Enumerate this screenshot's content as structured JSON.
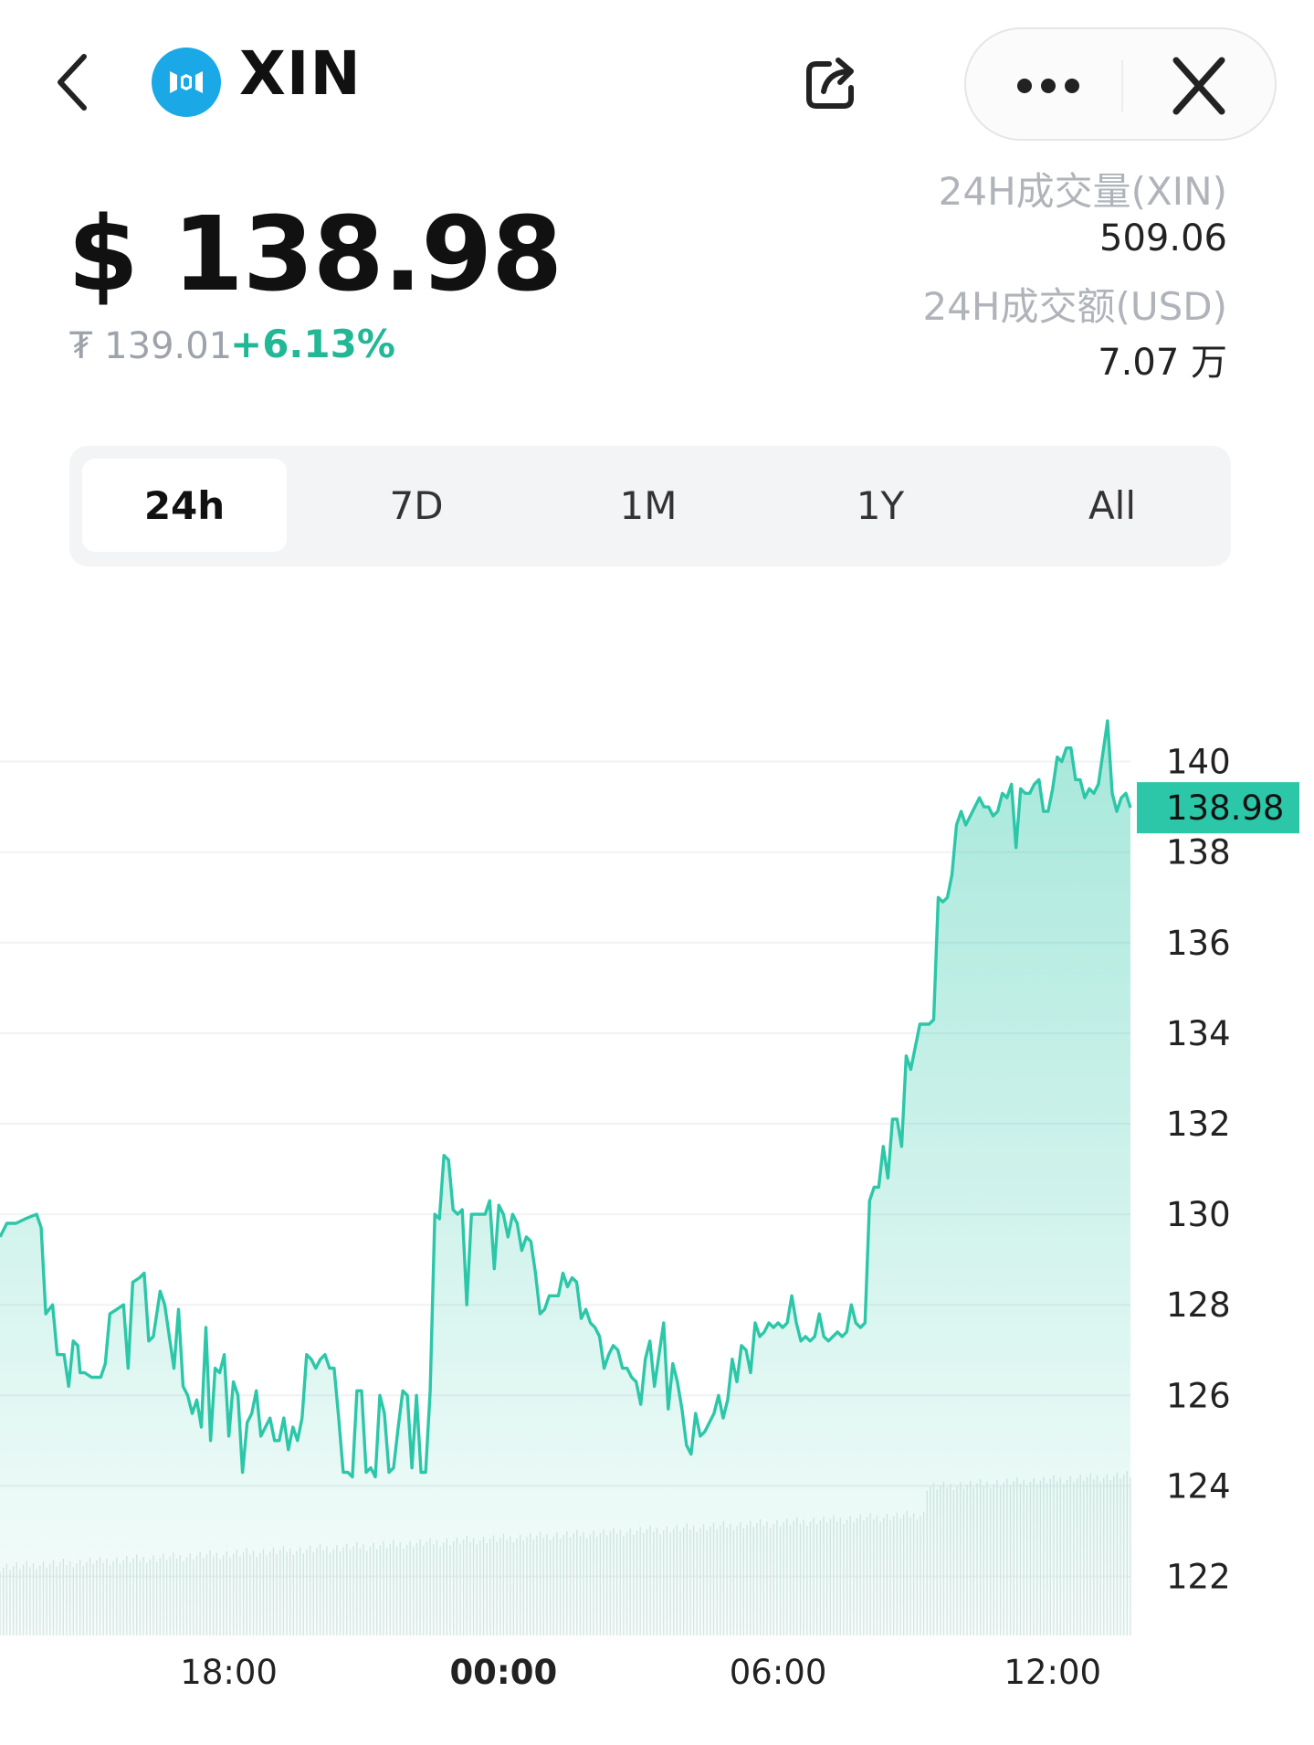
{
  "header": {
    "coin_symbol": "XIN",
    "logo_color": "#1aa9e6",
    "icons": [
      "back-arrow-icon",
      "mixin-logo-icon",
      "share-icon",
      "more-dots-icon",
      "close-icon"
    ]
  },
  "price": {
    "main": "$ 138.98",
    "alt_price": "₮ 139.01",
    "change": "+6.13%",
    "change_color": "#22b896"
  },
  "stats": {
    "volume_label": "24H成交量(XIN)",
    "volume_value": "509.06",
    "amount_label": "24H成交额(USD)",
    "amount_value": "7.07 万"
  },
  "range_tabs": [
    {
      "label": "24h",
      "active": true
    },
    {
      "label": "7D",
      "active": false
    },
    {
      "label": "1M",
      "active": false
    },
    {
      "label": "1Y",
      "active": false
    },
    {
      "label": "All",
      "active": false
    }
  ],
  "chart_data": {
    "type": "area",
    "title": "",
    "xlabel": "",
    "ylabel": "",
    "ylim": [
      120.9,
      143.1
    ],
    "y_ticks": [
      140,
      138,
      136,
      134,
      132,
      130,
      128,
      126,
      124,
      122
    ],
    "x_ticks": [
      {
        "label": "18:00",
        "t": 5.0,
        "bold": false
      },
      {
        "label": "00:00",
        "t": 11.0,
        "bold": true
      },
      {
        "label": "06:00",
        "t": 17.0,
        "bold": false
      },
      {
        "label": "12:00",
        "t": 23.0,
        "bold": false
      }
    ],
    "x_range_hours": [
      0,
      23.8
    ],
    "current_price": "138.98",
    "current_value": 138.98,
    "line_color": "#2cc7a8",
    "series": [
      {
        "points": [
          [
            0.0,
            129.5
          ],
          [
            0.15,
            129.8
          ],
          [
            0.35,
            129.8
          ],
          [
            0.55,
            129.9
          ],
          [
            0.8,
            130.0
          ],
          [
            0.9,
            129.7
          ],
          [
            1.0,
            127.8
          ],
          [
            1.15,
            128.0
          ],
          [
            1.25,
            126.9
          ],
          [
            1.4,
            126.9
          ],
          [
            1.5,
            126.2
          ],
          [
            1.6,
            127.2
          ],
          [
            1.7,
            127.1
          ],
          [
            1.75,
            126.5
          ],
          [
            1.85,
            126.5
          ],
          [
            2.0,
            126.4
          ],
          [
            2.2,
            126.4
          ],
          [
            2.3,
            126.7
          ],
          [
            2.4,
            127.8
          ],
          [
            2.55,
            127.9
          ],
          [
            2.7,
            128.0
          ],
          [
            2.8,
            126.6
          ],
          [
            2.9,
            128.5
          ],
          [
            3.05,
            128.6
          ],
          [
            3.15,
            128.7
          ],
          [
            3.25,
            127.2
          ],
          [
            3.35,
            127.3
          ],
          [
            3.5,
            128.3
          ],
          [
            3.6,
            128.0
          ],
          [
            3.7,
            127.3
          ],
          [
            3.8,
            126.6
          ],
          [
            3.9,
            127.9
          ],
          [
            4.0,
            126.2
          ],
          [
            4.1,
            126.0
          ],
          [
            4.2,
            125.6
          ],
          [
            4.3,
            125.9
          ],
          [
            4.4,
            125.3
          ],
          [
            4.5,
            127.5
          ],
          [
            4.6,
            125.0
          ],
          [
            4.7,
            126.6
          ],
          [
            4.8,
            126.5
          ],
          [
            4.9,
            126.9
          ],
          [
            5.0,
            125.1
          ],
          [
            5.1,
            126.3
          ],
          [
            5.2,
            126.0
          ],
          [
            5.3,
            124.3
          ],
          [
            5.4,
            125.4
          ],
          [
            5.5,
            125.6
          ],
          [
            5.6,
            126.1
          ],
          [
            5.7,
            125.1
          ],
          [
            5.8,
            125.3
          ],
          [
            5.9,
            125.5
          ],
          [
            6.0,
            125.0
          ],
          [
            6.1,
            125.0
          ],
          [
            6.2,
            125.5
          ],
          [
            6.3,
            124.8
          ],
          [
            6.4,
            125.3
          ],
          [
            6.5,
            125.0
          ],
          [
            6.6,
            125.5
          ],
          [
            6.7,
            126.9
          ],
          [
            6.8,
            126.8
          ],
          [
            6.9,
            126.6
          ],
          [
            7.0,
            126.8
          ],
          [
            7.1,
            126.9
          ],
          [
            7.2,
            126.6
          ],
          [
            7.3,
            126.6
          ],
          [
            7.4,
            125.5
          ],
          [
            7.5,
            124.3
          ],
          [
            7.6,
            124.3
          ],
          [
            7.7,
            124.2
          ],
          [
            7.8,
            126.1
          ],
          [
            7.9,
            126.1
          ],
          [
            8.0,
            124.3
          ],
          [
            8.1,
            124.4
          ],
          [
            8.2,
            124.2
          ],
          [
            8.3,
            126.0
          ],
          [
            8.4,
            125.6
          ],
          [
            8.5,
            124.3
          ],
          [
            8.6,
            124.4
          ],
          [
            8.7,
            125.3
          ],
          [
            8.8,
            126.1
          ],
          [
            8.9,
            126.0
          ],
          [
            9.0,
            124.4
          ],
          [
            9.1,
            126.0
          ],
          [
            9.2,
            124.3
          ],
          [
            9.3,
            124.3
          ],
          [
            9.4,
            126.1
          ],
          [
            9.5,
            130.0
          ],
          [
            9.6,
            129.9
          ],
          [
            9.7,
            131.3
          ],
          [
            9.8,
            131.2
          ],
          [
            9.9,
            130.1
          ],
          [
            10.0,
            130.0
          ],
          [
            10.1,
            130.1
          ],
          [
            10.2,
            128.0
          ],
          [
            10.3,
            130.0
          ],
          [
            10.4,
            130.0
          ],
          [
            10.5,
            130.0
          ],
          [
            10.6,
            130.0
          ],
          [
            10.7,
            130.3
          ],
          [
            10.8,
            128.8
          ],
          [
            10.9,
            130.2
          ],
          [
            11.0,
            130.0
          ],
          [
            11.1,
            129.5
          ],
          [
            11.2,
            130.0
          ],
          [
            11.3,
            129.8
          ],
          [
            11.4,
            129.2
          ],
          [
            11.5,
            129.5
          ],
          [
            11.6,
            129.4
          ],
          [
            11.7,
            128.7
          ],
          [
            11.8,
            127.8
          ],
          [
            11.9,
            127.9
          ],
          [
            12.0,
            128.2
          ],
          [
            12.1,
            128.2
          ],
          [
            12.2,
            128.2
          ],
          [
            12.3,
            128.7
          ],
          [
            12.4,
            128.4
          ],
          [
            12.5,
            128.6
          ],
          [
            12.6,
            128.5
          ],
          [
            12.7,
            127.7
          ],
          [
            12.8,
            127.9
          ],
          [
            12.9,
            127.6
          ],
          [
            13.0,
            127.5
          ],
          [
            13.1,
            127.3
          ],
          [
            13.2,
            126.6
          ],
          [
            13.3,
            126.9
          ],
          [
            13.4,
            127.1
          ],
          [
            13.5,
            127.0
          ],
          [
            13.6,
            126.6
          ],
          [
            13.7,
            126.6
          ],
          [
            13.8,
            126.4
          ],
          [
            13.9,
            126.3
          ],
          [
            14.0,
            125.8
          ],
          [
            14.1,
            126.8
          ],
          [
            14.2,
            127.2
          ],
          [
            14.3,
            126.2
          ],
          [
            14.4,
            126.9
          ],
          [
            14.5,
            127.6
          ],
          [
            14.6,
            125.7
          ],
          [
            14.7,
            126.7
          ],
          [
            14.8,
            126.3
          ],
          [
            14.9,
            125.7
          ],
          [
            15.0,
            124.9
          ],
          [
            15.1,
            124.7
          ],
          [
            15.2,
            125.6
          ],
          [
            15.3,
            125.1
          ],
          [
            15.4,
            125.2
          ],
          [
            15.5,
            125.4
          ],
          [
            15.6,
            125.6
          ],
          [
            15.7,
            126.0
          ],
          [
            15.8,
            125.5
          ],
          [
            15.9,
            125.9
          ],
          [
            16.0,
            126.8
          ],
          [
            16.1,
            126.3
          ],
          [
            16.2,
            127.1
          ],
          [
            16.3,
            127.0
          ],
          [
            16.4,
            126.5
          ],
          [
            16.5,
            127.6
          ],
          [
            16.6,
            127.3
          ],
          [
            16.7,
            127.4
          ],
          [
            16.8,
            127.6
          ],
          [
            16.9,
            127.5
          ],
          [
            17.0,
            127.6
          ],
          [
            17.1,
            127.5
          ],
          [
            17.2,
            127.6
          ],
          [
            17.3,
            128.2
          ],
          [
            17.4,
            127.6
          ],
          [
            17.5,
            127.2
          ],
          [
            17.6,
            127.3
          ],
          [
            17.7,
            127.2
          ],
          [
            17.8,
            127.3
          ],
          [
            17.9,
            127.8
          ],
          [
            18.0,
            127.3
          ],
          [
            18.1,
            127.2
          ],
          [
            18.2,
            127.3
          ],
          [
            18.3,
            127.4
          ],
          [
            18.4,
            127.3
          ],
          [
            18.5,
            127.4
          ],
          [
            18.6,
            128.0
          ],
          [
            18.7,
            127.6
          ],
          [
            18.8,
            127.5
          ],
          [
            18.9,
            127.6
          ],
          [
            19.0,
            130.3
          ],
          [
            19.1,
            130.6
          ],
          [
            19.2,
            130.6
          ],
          [
            19.3,
            131.5
          ],
          [
            19.4,
            130.8
          ],
          [
            19.5,
            132.1
          ],
          [
            19.6,
            132.1
          ],
          [
            19.7,
            131.5
          ],
          [
            19.8,
            133.5
          ],
          [
            19.9,
            133.2
          ],
          [
            20.0,
            133.7
          ],
          [
            20.1,
            134.2
          ],
          [
            20.2,
            134.2
          ],
          [
            20.3,
            134.2
          ],
          [
            20.4,
            134.3
          ],
          [
            20.5,
            137.0
          ],
          [
            20.6,
            136.9
          ],
          [
            20.7,
            137.0
          ],
          [
            20.8,
            137.5
          ],
          [
            20.9,
            138.6
          ],
          [
            21.0,
            138.9
          ],
          [
            21.1,
            138.6
          ],
          [
            21.2,
            138.8
          ],
          [
            21.3,
            139.0
          ],
          [
            21.4,
            139.2
          ],
          [
            21.5,
            139.0
          ],
          [
            21.6,
            139.0
          ],
          [
            21.7,
            138.8
          ],
          [
            21.8,
            138.9
          ],
          [
            21.9,
            139.3
          ],
          [
            22.0,
            139.2
          ],
          [
            22.1,
            139.5
          ],
          [
            22.2,
            138.1
          ],
          [
            22.3,
            139.4
          ],
          [
            22.4,
            139.3
          ],
          [
            22.5,
            139.3
          ],
          [
            22.6,
            139.5
          ],
          [
            22.7,
            139.6
          ],
          [
            22.8,
            138.9
          ],
          [
            22.9,
            138.9
          ],
          [
            23.0,
            139.4
          ],
          [
            23.1,
            140.1
          ],
          [
            23.2,
            140.0
          ],
          [
            23.3,
            140.3
          ],
          [
            23.4,
            140.3
          ],
          [
            23.5,
            139.6
          ],
          [
            23.6,
            139.6
          ],
          [
            23.7,
            139.2
          ],
          [
            23.8,
            139.4
          ],
          [
            23.9,
            139.3
          ],
          [
            24.0,
            139.5
          ],
          [
            24.1,
            140.2
          ],
          [
            24.2,
            140.9
          ],
          [
            24.3,
            139.3
          ],
          [
            24.4,
            138.9
          ],
          [
            24.5,
            139.2
          ],
          [
            24.6,
            139.3
          ],
          [
            24.7,
            138.98
          ]
        ]
      }
    ],
    "volume_color": "#dde6e4"
  }
}
